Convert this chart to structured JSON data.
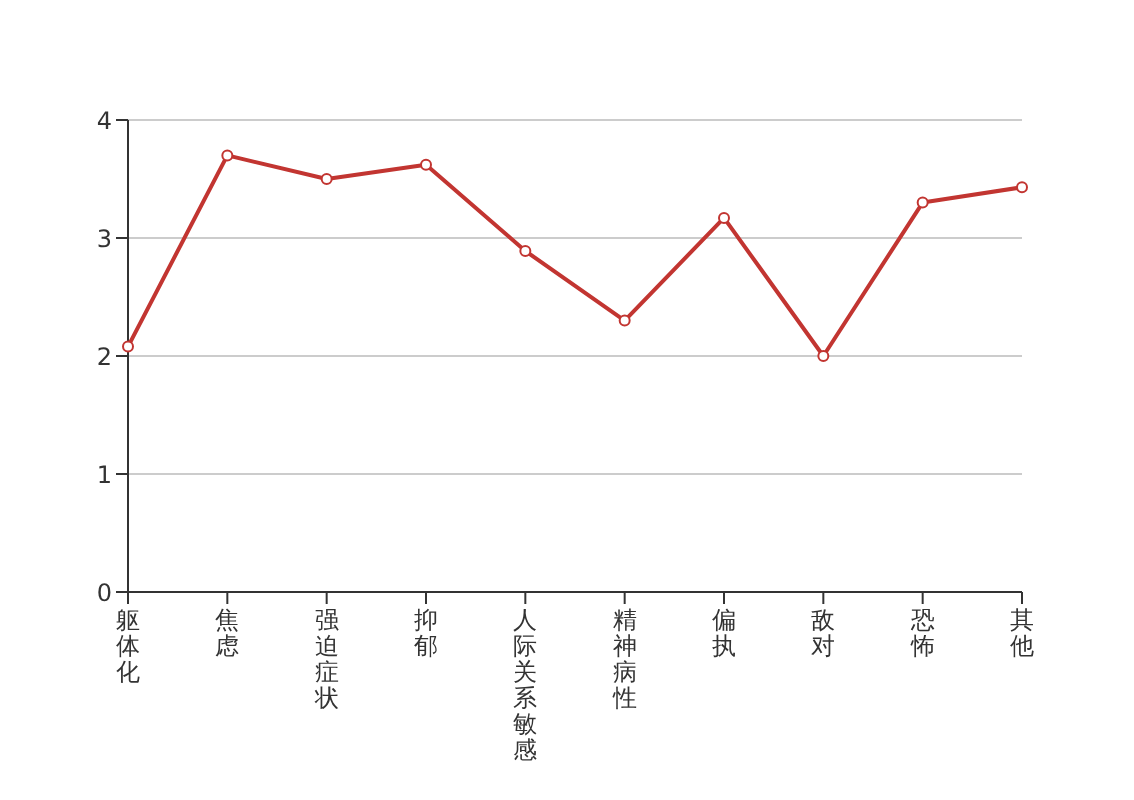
{
  "chart_data": {
    "type": "line",
    "categories": [
      "躯体化",
      "焦虑",
      "强迫症状",
      "抑郁",
      "人际关系敏感",
      "精神病性",
      "偏执",
      "敌对",
      "恐怖",
      "其他"
    ],
    "series": [
      {
        "color": "#c23531",
        "values": [
          2.08,
          3.7,
          3.5,
          3.62,
          2.89,
          2.3,
          3.17,
          2.0,
          3.3,
          3.43
        ]
      }
    ],
    "ylim": [
      0,
      4
    ],
    "yticks": [
      0,
      1,
      2,
      3,
      4
    ],
    "grid": "y",
    "marker": "circle",
    "line_style": "solid"
  }
}
